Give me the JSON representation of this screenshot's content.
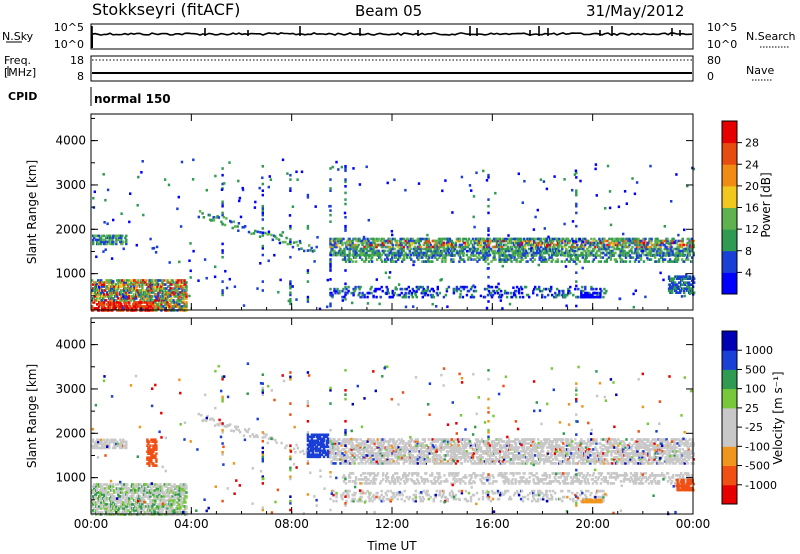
{
  "header": {
    "station": "Stokkseyri (fitACF)",
    "beam": "Beam 05",
    "date": "31/May/2012"
  },
  "left_labels": {
    "nsky": "N.Sky",
    "freq": "Freq.",
    "freq_unit": "[MHz]",
    "cpid": "CPID"
  },
  "right_labels": {
    "nsearch": "N.Search",
    "nave": "Nave"
  },
  "cpid_value": "normal 150",
  "colors": {
    "power_scale": [
      "#0000ff",
      "#1a3fd6",
      "#2f9a52",
      "#5fb34e",
      "#f0c81e",
      "#f08c14",
      "#e64b0f",
      "#e60000"
    ],
    "velocity_scale": [
      "#e60000",
      "#f05014",
      "#f0961e",
      "#c8c8c8",
      "#c8c8c8",
      "#78c83c",
      "#2f9a52",
      "#1a3fd6",
      "#0000b4"
    ]
  },
  "chart_data": [
    {
      "type": "line",
      "panel": "noise",
      "left_ticks": [
        "10^5",
        "10^0"
      ],
      "right_ticks": [
        "10^5",
        "10^0"
      ]
    },
    {
      "type": "line",
      "panel": "frequency",
      "left_ticks": [
        "18",
        "8"
      ],
      "right_ticks": [
        "80",
        "0"
      ]
    },
    {
      "type": "heatmap",
      "panel": "power",
      "ylabel": "Slant Range [km]",
      "y_ticks": [
        "4000",
        "3000",
        "2000",
        "1000"
      ],
      "ylim": [
        180,
        4600
      ],
      "x_ticks": [
        "00:00",
        "04:00",
        "08:00",
        "12:00",
        "16:00",
        "20:00",
        "00:00"
      ],
      "xlim_hours": [
        0,
        24
      ],
      "colorbar_label": "Power [dB]",
      "colorbar_ticks": [
        "28",
        "24",
        "20",
        "16",
        "12",
        "8",
        "4"
      ]
    },
    {
      "type": "heatmap",
      "panel": "velocity",
      "ylabel": "Slant Range [km]",
      "y_ticks": [
        "4000",
        "3000",
        "2000",
        "1000"
      ],
      "ylim": [
        180,
        4600
      ],
      "x_ticks": [
        "00:00",
        "04:00",
        "08:00",
        "12:00",
        "16:00",
        "20:00",
        "00:00"
      ],
      "xlim_hours": [
        0,
        24
      ],
      "xlabel": "Time UT",
      "colorbar_label": "Velocity [m s⁻¹]",
      "colorbar_ticks": [
        "1000",
        "500",
        "100",
        "25",
        "-25",
        "-100",
        "-500",
        "-1000"
      ]
    }
  ]
}
